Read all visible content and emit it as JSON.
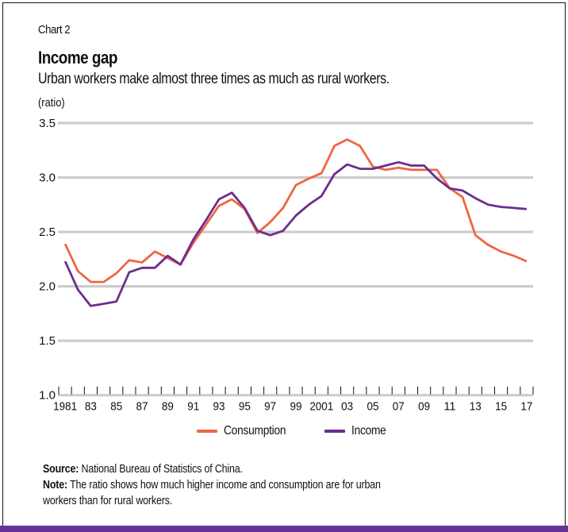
{
  "header": {
    "chart_number": "Chart 2",
    "title": "Income gap",
    "subtitle": "Urban workers make almost three times as much as rural workers.",
    "unit_label": "(ratio)"
  },
  "footer": {
    "source_label": "Source:",
    "source_text": "National Bureau of Statistics of China.",
    "note_label": "Note:",
    "note_text_line1": "The ratio shows how much higher income and consumption are for urban",
    "note_text_line2": "workers than for rural workers."
  },
  "colors": {
    "consumption": "#EE6645",
    "income": "#6B2E8F",
    "gridline": "#CCCCCC",
    "bottom_bar": "#663399"
  },
  "chart_data": {
    "type": "line",
    "title": "Income gap",
    "subtitle": "Urban workers make almost three times as much as rural workers.",
    "xlabel": "",
    "ylabel": "(ratio)",
    "ylim": [
      1.0,
      3.5
    ],
    "yticks": [
      1.0,
      1.5,
      2.0,
      2.5,
      3.0,
      3.5
    ],
    "ytick_labels": [
      "1.0",
      "1.5",
      "2.0",
      "2.5",
      "3.0",
      "3.5"
    ],
    "x": [
      1981,
      1982,
      1983,
      1984,
      1985,
      1986,
      1987,
      1988,
      1989,
      1990,
      1991,
      1992,
      1993,
      1994,
      1995,
      1996,
      1997,
      1998,
      1999,
      2000,
      2001,
      2002,
      2003,
      2004,
      2005,
      2006,
      2007,
      2008,
      2009,
      2010,
      2011,
      2012,
      2013,
      2014,
      2015,
      2016,
      2017
    ],
    "xtick_labels": [
      {
        "year": 1981,
        "label": "1981"
      },
      {
        "year": 1983,
        "label": "83"
      },
      {
        "year": 1985,
        "label": "85"
      },
      {
        "year": 1987,
        "label": "87"
      },
      {
        "year": 1989,
        "label": "89"
      },
      {
        "year": 1991,
        "label": "91"
      },
      {
        "year": 1993,
        "label": "93"
      },
      {
        "year": 1995,
        "label": "95"
      },
      {
        "year": 1997,
        "label": "97"
      },
      {
        "year": 1999,
        "label": "99"
      },
      {
        "year": 2001,
        "label": "2001"
      },
      {
        "year": 2003,
        "label": "03"
      },
      {
        "year": 2005,
        "label": "05"
      },
      {
        "year": 2007,
        "label": "07"
      },
      {
        "year": 2009,
        "label": "09"
      },
      {
        "year": 2011,
        "label": "11"
      },
      {
        "year": 2013,
        "label": "13"
      },
      {
        "year": 2015,
        "label": "15"
      },
      {
        "year": 2017,
        "label": "17"
      }
    ],
    "grid": true,
    "legend_position": "bottom-center",
    "series": [
      {
        "name": "Consumption",
        "color_key": "consumption",
        "values": [
          2.39,
          2.14,
          2.04,
          2.04,
          2.12,
          2.24,
          2.22,
          2.32,
          2.26,
          2.2,
          2.4,
          2.57,
          2.74,
          2.8,
          2.71,
          2.49,
          2.59,
          2.72,
          2.93,
          2.99,
          3.04,
          3.29,
          3.35,
          3.29,
          3.1,
          3.07,
          3.09,
          3.07,
          3.07,
          3.07,
          2.9,
          2.82,
          2.47,
          2.38,
          2.32,
          2.28,
          2.23
        ]
      },
      {
        "name": "Income",
        "color_key": "income",
        "values": [
          2.23,
          1.97,
          1.82,
          1.84,
          1.86,
          2.13,
          2.17,
          2.17,
          2.28,
          2.2,
          2.43,
          2.61,
          2.8,
          2.86,
          2.72,
          2.51,
          2.47,
          2.51,
          2.65,
          2.75,
          2.83,
          3.03,
          3.12,
          3.08,
          3.08,
          3.11,
          3.14,
          3.11,
          3.11,
          2.99,
          2.9,
          2.88,
          2.81,
          2.75,
          2.73,
          2.72,
          2.71
        ]
      }
    ]
  }
}
